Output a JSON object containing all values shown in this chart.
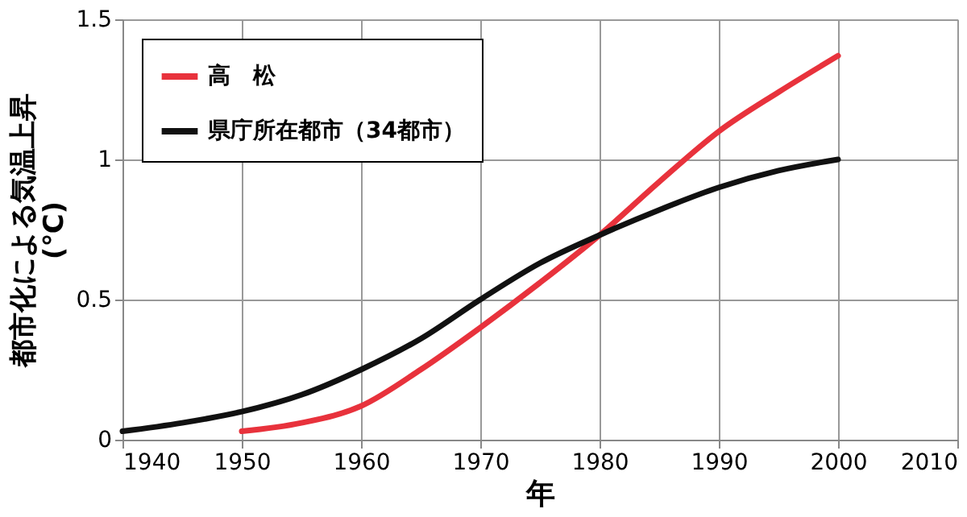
{
  "chart_data": {
    "type": "line",
    "xlabel": "年",
    "ylabel": "都市化による気温上昇\n(℃)",
    "xlim": [
      1940,
      2010
    ],
    "xticks": [
      1940,
      1950,
      1960,
      1970,
      1980,
      1990,
      2000,
      2010
    ],
    "ylim": [
      0,
      1.5
    ],
    "yticks": [
      0,
      0.5,
      1,
      1.5
    ],
    "grid": true,
    "legend": "top left",
    "marker": "none",
    "line_style": "solid",
    "series": [
      {
        "name": "高　松",
        "color": "#e8323c",
        "x": [
          1950,
          1955,
          1960,
          1965,
          1970,
          1975,
          1980,
          1985,
          1990,
          1995,
          2000
        ],
        "values": [
          0.03,
          0.06,
          0.12,
          0.25,
          0.4,
          0.56,
          0.73,
          0.92,
          1.1,
          1.24,
          1.37
        ]
      },
      {
        "name": "県庁所在都市（34都市）",
        "color": "#111111",
        "x": [
          1940,
          1945,
          1950,
          1955,
          1960,
          1965,
          1970,
          1975,
          1980,
          1985,
          1990,
          1995,
          2000
        ],
        "values": [
          0.03,
          0.06,
          0.1,
          0.16,
          0.25,
          0.36,
          0.5,
          0.63,
          0.73,
          0.82,
          0.9,
          0.96,
          1.0
        ]
      }
    ]
  }
}
